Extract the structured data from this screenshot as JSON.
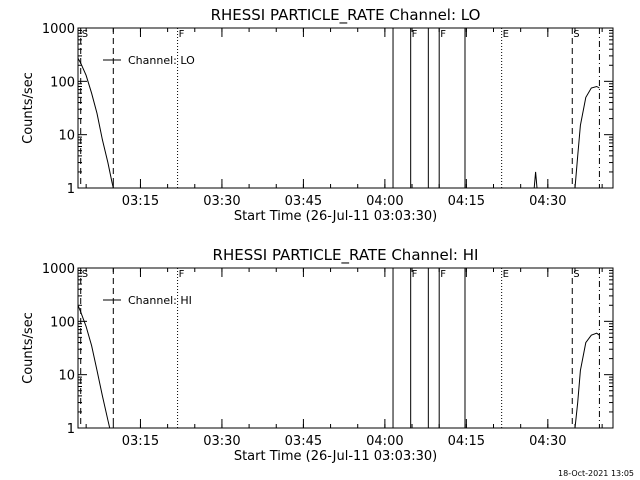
{
  "footer_timestamp": "18-Oct-2021 13:05",
  "chart_data": [
    {
      "type": "line",
      "title": "RHESSI PARTICLE_RATE Channel: LO",
      "xlabel": "Start Time (26-Jul-11 03:03:30)",
      "ylabel": "Counts/sec",
      "legend": "Channel: LO",
      "legend_position": "top-left",
      "y_scale": "log",
      "ylim": [
        1,
        1000
      ],
      "y_ticks": [
        {
          "v": 1,
          "label": "1"
        },
        {
          "v": 10,
          "label": "10"
        },
        {
          "v": 100,
          "label": "100"
        },
        {
          "v": 1000,
          "label": "1000"
        }
      ],
      "xlim": [
        "03:03:30",
        "04:42:00"
      ],
      "x_ticks": [
        "03:15",
        "03:30",
        "03:45",
        "04:00",
        "04:15",
        "04:30"
      ],
      "markers": [
        {
          "time": "03:04:00",
          "style": "dashed",
          "label": "S"
        },
        {
          "time": "03:10:00",
          "style": "dashed",
          "label": ""
        },
        {
          "time": "03:21:50",
          "style": "dotted",
          "label": "F"
        },
        {
          "time": "04:04:45",
          "style": "solid",
          "label": "F"
        },
        {
          "time": "04:08:00",
          "style": "solid",
          "label": ""
        },
        {
          "time": "04:01:30",
          "style": "solid",
          "label": ""
        },
        {
          "time": "04:10:00",
          "style": "solid",
          "label": "F"
        },
        {
          "time": "04:14:45",
          "style": "solid",
          "label": ""
        },
        {
          "time": "04:21:30",
          "style": "dotted",
          "label": "E"
        },
        {
          "time": "04:34:30",
          "style": "dashed",
          "label": "S"
        },
        {
          "time": "04:39:30",
          "style": "dashdot",
          "label": ""
        }
      ],
      "series": [
        {
          "name": "Channel: LO",
          "x": [
            "03:03:30",
            "03:04:00",
            "03:05:00",
            "03:06:00",
            "03:07:00",
            "03:08:00",
            "03:09:00",
            "03:09:45",
            "03:10:00",
            "04:27:30",
            "04:27:45",
            "04:28:00",
            "04:35:00",
            "04:35:30",
            "04:36:00",
            "04:37:00",
            "04:38:00",
            "04:39:00",
            "04:39:30"
          ],
          "y": [
            270,
            220,
            130,
            60,
            25,
            8,
            3,
            1.3,
            1,
            1,
            2,
            1,
            1,
            4,
            15,
            50,
            75,
            80,
            75
          ]
        }
      ]
    },
    {
      "type": "line",
      "title": "RHESSI PARTICLE_RATE Channel: HI",
      "xlabel": "Start Time (26-Jul-11 03:03:30)",
      "ylabel": "Counts/sec",
      "legend": "Channel: HI",
      "legend_position": "top-left",
      "y_scale": "log",
      "ylim": [
        1,
        1000
      ],
      "y_ticks": [
        {
          "v": 1,
          "label": "1"
        },
        {
          "v": 10,
          "label": "10"
        },
        {
          "v": 100,
          "label": "100"
        },
        {
          "v": 1000,
          "label": "1000"
        }
      ],
      "xlim": [
        "03:03:30",
        "04:42:00"
      ],
      "x_ticks": [
        "03:15",
        "03:30",
        "03:45",
        "04:00",
        "04:15",
        "04:30"
      ],
      "markers": [
        {
          "time": "03:04:00",
          "style": "dashed",
          "label": "S"
        },
        {
          "time": "03:10:00",
          "style": "dashed",
          "label": ""
        },
        {
          "time": "03:21:50",
          "style": "dotted",
          "label": "F"
        },
        {
          "time": "04:04:45",
          "style": "solid",
          "label": "F"
        },
        {
          "time": "04:08:00",
          "style": "solid",
          "label": ""
        },
        {
          "time": "04:01:30",
          "style": "solid",
          "label": ""
        },
        {
          "time": "04:10:00",
          "style": "solid",
          "label": "F"
        },
        {
          "time": "04:14:45",
          "style": "solid",
          "label": ""
        },
        {
          "time": "04:21:30",
          "style": "dotted",
          "label": "E"
        },
        {
          "time": "04:34:30",
          "style": "dashed",
          "label": "S"
        },
        {
          "time": "04:39:30",
          "style": "dashdot",
          "label": ""
        }
      ],
      "series": [
        {
          "name": "Channel: HI",
          "x": [
            "03:03:30",
            "03:04:00",
            "03:05:00",
            "03:06:00",
            "03:07:00",
            "03:08:00",
            "03:09:00",
            "03:09:20",
            "04:35:00",
            "04:35:30",
            "04:36:00",
            "04:37:00",
            "04:38:00",
            "04:39:00",
            "04:39:30"
          ],
          "y": [
            200,
            150,
            80,
            35,
            12,
            4,
            1.4,
            1,
            1,
            3,
            12,
            40,
            55,
            60,
            55
          ]
        }
      ]
    }
  ]
}
